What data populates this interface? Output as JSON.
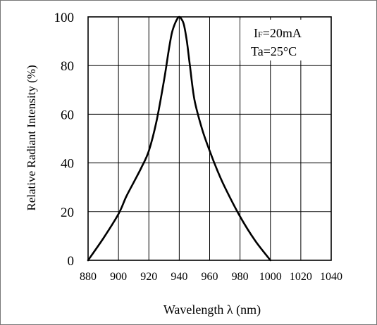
{
  "chart_data": {
    "type": "line",
    "title": "",
    "xlabel": "Wavelength  λ  (nm)",
    "ylabel": "Relative Radiant Intensity (%)",
    "xlim": [
      880,
      1040
    ],
    "ylim": [
      0,
      100
    ],
    "x_ticks": [
      880,
      900,
      920,
      940,
      960,
      980,
      1000,
      1020,
      1040
    ],
    "y_ticks": [
      0,
      20,
      40,
      60,
      80,
      100
    ],
    "grid": true,
    "annotations": [
      {
        "main": "I",
        "sub": "F",
        "rest": "=20mA"
      },
      {
        "text": "Ta=25°C"
      }
    ],
    "series": [
      {
        "color": "#000000",
        "x": [
          880,
          890,
          900,
          905,
          910,
          915,
          920,
          925,
          930,
          933,
          935,
          937,
          939,
          940,
          941,
          943,
          945,
          947,
          950,
          955,
          960,
          965,
          970,
          980,
          990,
          1000
        ],
        "y": [
          0,
          9,
          19,
          26,
          32,
          38,
          45,
          57,
          74,
          86,
          93,
          97,
          99.5,
          100,
          99.5,
          97,
          90,
          80,
          66,
          54,
          45,
          37,
          30,
          18,
          8,
          0
        ]
      }
    ]
  }
}
